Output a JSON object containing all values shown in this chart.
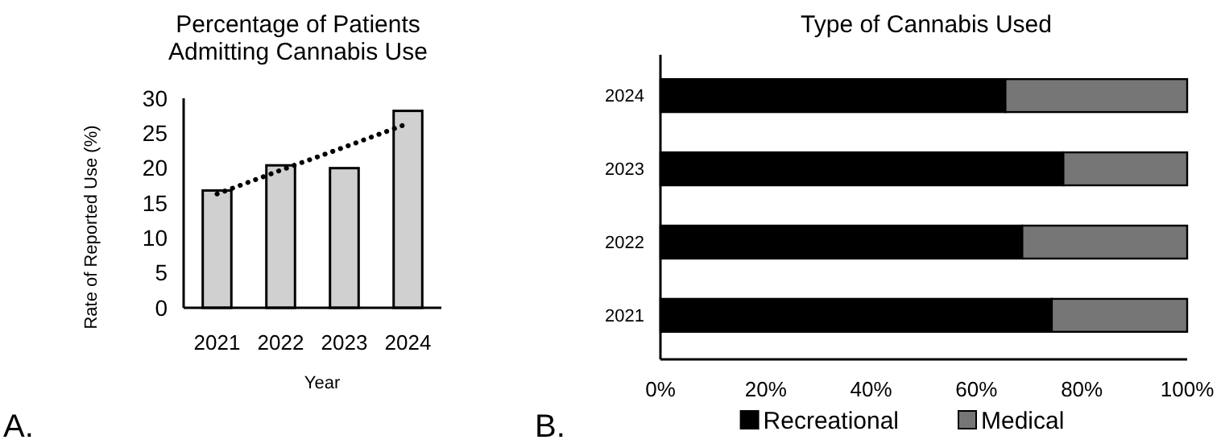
{
  "chart_data": [
    {
      "type": "bar",
      "title": "Percentage of Patients Admitting Cannabis Use",
      "xlabel": "Year",
      "ylabel": "Rate of Reported Use (%)",
      "categories": [
        "2021",
        "2022",
        "2023",
        "2024"
      ],
      "ylim": [
        0,
        30
      ],
      "yticks": [
        0,
        5,
        10,
        15,
        20,
        25,
        30
      ],
      "grid": false,
      "annotations": [
        "A."
      ],
      "series": [
        {
          "type": "bar",
          "color": "#d0d0d0",
          "values": [
            16.8,
            20.4,
            20.0,
            28.2
          ]
        },
        {
          "type": "line",
          "color": "#000000",
          "values": [
            16.3,
            19.7,
            23.0,
            26.4
          ],
          "line_style": "dotted"
        }
      ]
    },
    {
      "type": "bar",
      "title": "Type of Cannabis Used",
      "orientation": "horizontal",
      "stacked": true,
      "categories": [
        "2024",
        "2023",
        "2022",
        "2021"
      ],
      "xlim": [
        0,
        100
      ],
      "xticks": [
        {
          "value": 0,
          "label": "0%"
        },
        {
          "value": 20,
          "label": "20%"
        },
        {
          "value": 40,
          "label": "40%"
        },
        {
          "value": 60,
          "label": "60%"
        },
        {
          "value": 80,
          "label": "80%"
        },
        {
          "value": 100,
          "label": "100%"
        }
      ],
      "grid": false,
      "legend": "bottom",
      "annotations": [
        "B."
      ],
      "series": [
        {
          "name": "Recreational",
          "color": "#000000",
          "values": [
            65.5,
            76.5,
            68.7,
            74.3
          ]
        },
        {
          "name": "Medical",
          "color": "#767676",
          "values": [
            34.5,
            23.5,
            31.3,
            25.7
          ]
        }
      ]
    }
  ]
}
